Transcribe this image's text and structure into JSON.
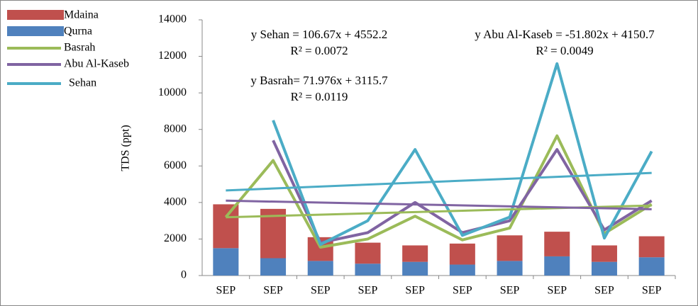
{
  "chart_data": {
    "type": "combo",
    "y_label": "TDS (ppt)",
    "categories": [
      "SEP",
      "SEP",
      "SEP",
      "SEP",
      "SEP",
      "SEP",
      "SEP",
      "SEP",
      "SEP",
      "SEP"
    ],
    "ylim": [
      0,
      14000
    ],
    "yticks": [
      0,
      2000,
      4000,
      6000,
      8000,
      10000,
      12000,
      14000
    ],
    "series": [
      {
        "name": "Qurna",
        "type": "bar",
        "color": "#4f81bd",
        "values": [
          1500,
          950,
          800,
          650,
          750,
          600,
          800,
          1050,
          750,
          1000
        ]
      },
      {
        "name": "Mdaina",
        "type": "bar",
        "color": "#c0504d",
        "values": [
          2400,
          2700,
          1300,
          1150,
          900,
          1150,
          1400,
          1350,
          900,
          1150
        ]
      },
      {
        "name": "Basrah",
        "type": "line",
        "color": "#9bbb59",
        "values": [
          3200,
          6300,
          1550,
          2000,
          3250,
          1950,
          2600,
          7650,
          2300,
          3900
        ]
      },
      {
        "name": "Abu Al-Kaseb",
        "type": "line",
        "color": "#8064a2",
        "values": [
          null,
          7400,
          1800,
          2350,
          4000,
          2350,
          3000,
          6900,
          2500,
          4100
        ]
      },
      {
        "name": "Sehan",
        "type": "line",
        "color": "#4bacc6",
        "values": [
          null,
          8500,
          1700,
          3000,
          6900,
          2200,
          3200,
          11600,
          2050,
          6800
        ]
      }
    ],
    "trendlines": [
      {
        "series": 4,
        "slope": 106.67,
        "intercept": 4552.2
      },
      {
        "series": 2,
        "slope": 71.976,
        "intercept": 3115.7
      },
      {
        "series": 3,
        "slope": -51.802,
        "intercept": 4150.7
      }
    ],
    "annotations": [
      "y Sehan = 106.67x + 4552.2",
      "R² = 0.0072",
      "y Basrah= 71.976x + 3115.7",
      "R² = 0.0119",
      "y Abu Al-Kaseb = -51.802x + 4150.7",
      "R² = 0.0049"
    ],
    "legend_order": [
      1,
      0,
      2,
      3,
      4
    ]
  }
}
